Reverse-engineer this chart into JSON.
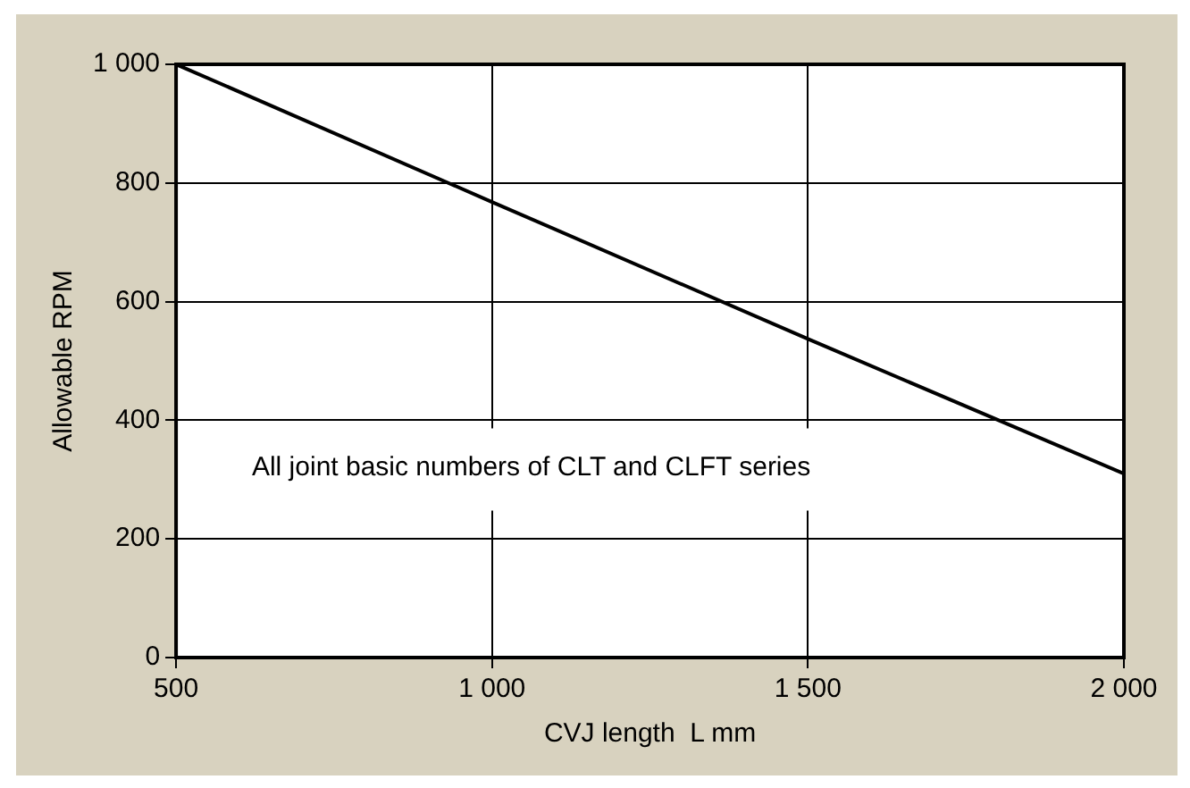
{
  "chart_data": {
    "type": "line",
    "xlabel": "CVJ length  L mm",
    "ylabel": "Allowable RPM",
    "x": [
      500,
      1000,
      1500,
      2000
    ],
    "series": [
      {
        "color": "#000000",
        "values": [
          1000,
          768,
          537,
          310
        ]
      }
    ],
    "xlim": [
      500,
      2000
    ],
    "xticks": [
      500,
      {
        "value": 1000,
        "label": "1 000"
      },
      {
        "value": 1500,
        "label": "1 500"
      },
      {
        "value": 2000,
        "label": "2 000"
      }
    ],
    "ylim": [
      0,
      1000
    ],
    "yticks": [
      0,
      200,
      400,
      600,
      800,
      {
        "value": 1000,
        "label": "1 000"
      }
    ],
    "grid": true,
    "legend": false,
    "marker": "none",
    "line_style": "solid",
    "annotations": [
      "All joint basic numbers of CLT and CLFT series"
    ]
  }
}
